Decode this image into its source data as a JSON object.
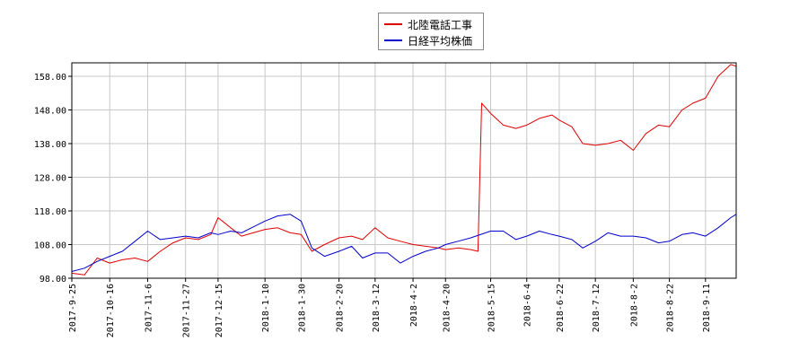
{
  "chart_data": {
    "type": "line",
    "title": "",
    "xlabel": "",
    "ylabel": "",
    "x_range": [
      "2017-09-25",
      "2018-09-28"
    ],
    "ylim": [
      98,
      162
    ],
    "y_ticks": [
      "98.00",
      "108.00",
      "118.00",
      "128.00",
      "138.00",
      "148.00",
      "158.00"
    ],
    "x_ticks": [
      "2017-9-25",
      "2017-10-16",
      "2017-11-6",
      "2017-11-27",
      "2017-12-15",
      "2018-1-10",
      "2018-1-30",
      "2018-2-20",
      "2018-3-12",
      "2018-4-2",
      "2018-4-20",
      "2018-5-15",
      "2018-6-4",
      "2018-6-22",
      "2018-7-12",
      "2018-8-2",
      "2018-8-22",
      "2018-9-11"
    ],
    "grid": true,
    "legend_position": "top-center",
    "series": [
      {
        "name": "北陸電話工事",
        "color": "#dd0000",
        "points": [
          [
            "2017-9-25",
            99.5
          ],
          [
            "2017-10-2",
            99
          ],
          [
            "2017-10-9",
            104
          ],
          [
            "2017-10-16",
            102.5
          ],
          [
            "2017-10-23",
            103.5
          ],
          [
            "2017-10-30",
            104
          ],
          [
            "2017-11-6",
            103
          ],
          [
            "2017-11-13",
            106
          ],
          [
            "2017-11-20",
            108.5
          ],
          [
            "2017-11-27",
            110
          ],
          [
            "2017-12-4",
            109.5
          ],
          [
            "2017-12-11",
            111
          ],
          [
            "2017-12-15",
            116
          ],
          [
            "2017-12-22",
            113
          ],
          [
            "2017-12-28",
            110.5
          ],
          [
            "2018-1-10",
            112.5
          ],
          [
            "2018-1-17",
            113
          ],
          [
            "2018-1-24",
            111.5
          ],
          [
            "2018-1-30",
            111
          ],
          [
            "2018-2-5",
            106
          ],
          [
            "2018-2-12",
            108
          ],
          [
            "2018-2-20",
            110
          ],
          [
            "2018-2-27",
            110.5
          ],
          [
            "2018-3-5",
            109.5
          ],
          [
            "2018-3-12",
            113
          ],
          [
            "2018-3-19",
            110
          ],
          [
            "2018-3-26",
            109
          ],
          [
            "2018-4-2",
            108
          ],
          [
            "2018-4-9",
            107.5
          ],
          [
            "2018-4-16",
            107
          ],
          [
            "2018-4-20",
            106.5
          ],
          [
            "2018-4-27",
            107
          ],
          [
            "2018-5-4",
            106.5
          ],
          [
            "2018-5-8",
            106
          ],
          [
            "2018-5-10",
            150
          ],
          [
            "2018-5-15",
            147
          ],
          [
            "2018-5-22",
            143.5
          ],
          [
            "2018-5-29",
            142.5
          ],
          [
            "2018-6-4",
            143.5
          ],
          [
            "2018-6-11",
            145.5
          ],
          [
            "2018-6-18",
            146.5
          ],
          [
            "2018-6-22",
            145
          ],
          [
            "2018-6-29",
            143
          ],
          [
            "2018-7-5",
            138
          ],
          [
            "2018-7-12",
            137.5
          ],
          [
            "2018-7-19",
            138
          ],
          [
            "2018-7-26",
            139
          ],
          [
            "2018-8-2",
            136
          ],
          [
            "2018-8-9",
            141
          ],
          [
            "2018-8-16",
            143.5
          ],
          [
            "2018-8-22",
            143
          ],
          [
            "2018-8-29",
            148
          ],
          [
            "2018-9-4",
            150
          ],
          [
            "2018-9-11",
            151.5
          ],
          [
            "2018-9-18",
            158
          ],
          [
            "2018-9-25",
            161.5
          ],
          [
            "2018-9-28",
            161
          ]
        ]
      },
      {
        "name": "日経平均株価",
        "color": "#0000cc",
        "points": [
          [
            "2017-9-25",
            100
          ],
          [
            "2017-10-2",
            101
          ],
          [
            "2017-10-9",
            103
          ],
          [
            "2017-10-16",
            104.5
          ],
          [
            "2017-10-23",
            106
          ],
          [
            "2017-10-30",
            109
          ],
          [
            "2017-11-6",
            112
          ],
          [
            "2017-11-13",
            109.5
          ],
          [
            "2017-11-20",
            110
          ],
          [
            "2017-11-27",
            110.5
          ],
          [
            "2017-12-4",
            110
          ],
          [
            "2017-12-11",
            111.5
          ],
          [
            "2017-12-15",
            111
          ],
          [
            "2017-12-22",
            112
          ],
          [
            "2017-12-28",
            111.5
          ],
          [
            "2018-1-10",
            115
          ],
          [
            "2018-1-17",
            116.5
          ],
          [
            "2018-1-24",
            117
          ],
          [
            "2018-1-30",
            115
          ],
          [
            "2018-2-5",
            107
          ],
          [
            "2018-2-12",
            104.5
          ],
          [
            "2018-2-20",
            106
          ],
          [
            "2018-2-27",
            107.5
          ],
          [
            "2018-3-5",
            104
          ],
          [
            "2018-3-12",
            105.5
          ],
          [
            "2018-3-19",
            105.5
          ],
          [
            "2018-3-26",
            102.5
          ],
          [
            "2018-4-2",
            104.5
          ],
          [
            "2018-4-9",
            106
          ],
          [
            "2018-4-16",
            107
          ],
          [
            "2018-4-20",
            108
          ],
          [
            "2018-4-27",
            109
          ],
          [
            "2018-5-4",
            110
          ],
          [
            "2018-5-15",
            112
          ],
          [
            "2018-5-22",
            112
          ],
          [
            "2018-5-29",
            109.5
          ],
          [
            "2018-6-4",
            110.5
          ],
          [
            "2018-6-11",
            112
          ],
          [
            "2018-6-18",
            111
          ],
          [
            "2018-6-22",
            110.5
          ],
          [
            "2018-6-29",
            109.5
          ],
          [
            "2018-7-5",
            107
          ],
          [
            "2018-7-12",
            109
          ],
          [
            "2018-7-19",
            111.5
          ],
          [
            "2018-7-26",
            110.5
          ],
          [
            "2018-8-2",
            110.5
          ],
          [
            "2018-8-9",
            110
          ],
          [
            "2018-8-16",
            108.5
          ],
          [
            "2018-8-22",
            109
          ],
          [
            "2018-8-29",
            111
          ],
          [
            "2018-9-4",
            111.5
          ],
          [
            "2018-9-11",
            110.5
          ],
          [
            "2018-9-18",
            113
          ],
          [
            "2018-9-25",
            116
          ],
          [
            "2018-9-28",
            117
          ]
        ]
      }
    ]
  }
}
